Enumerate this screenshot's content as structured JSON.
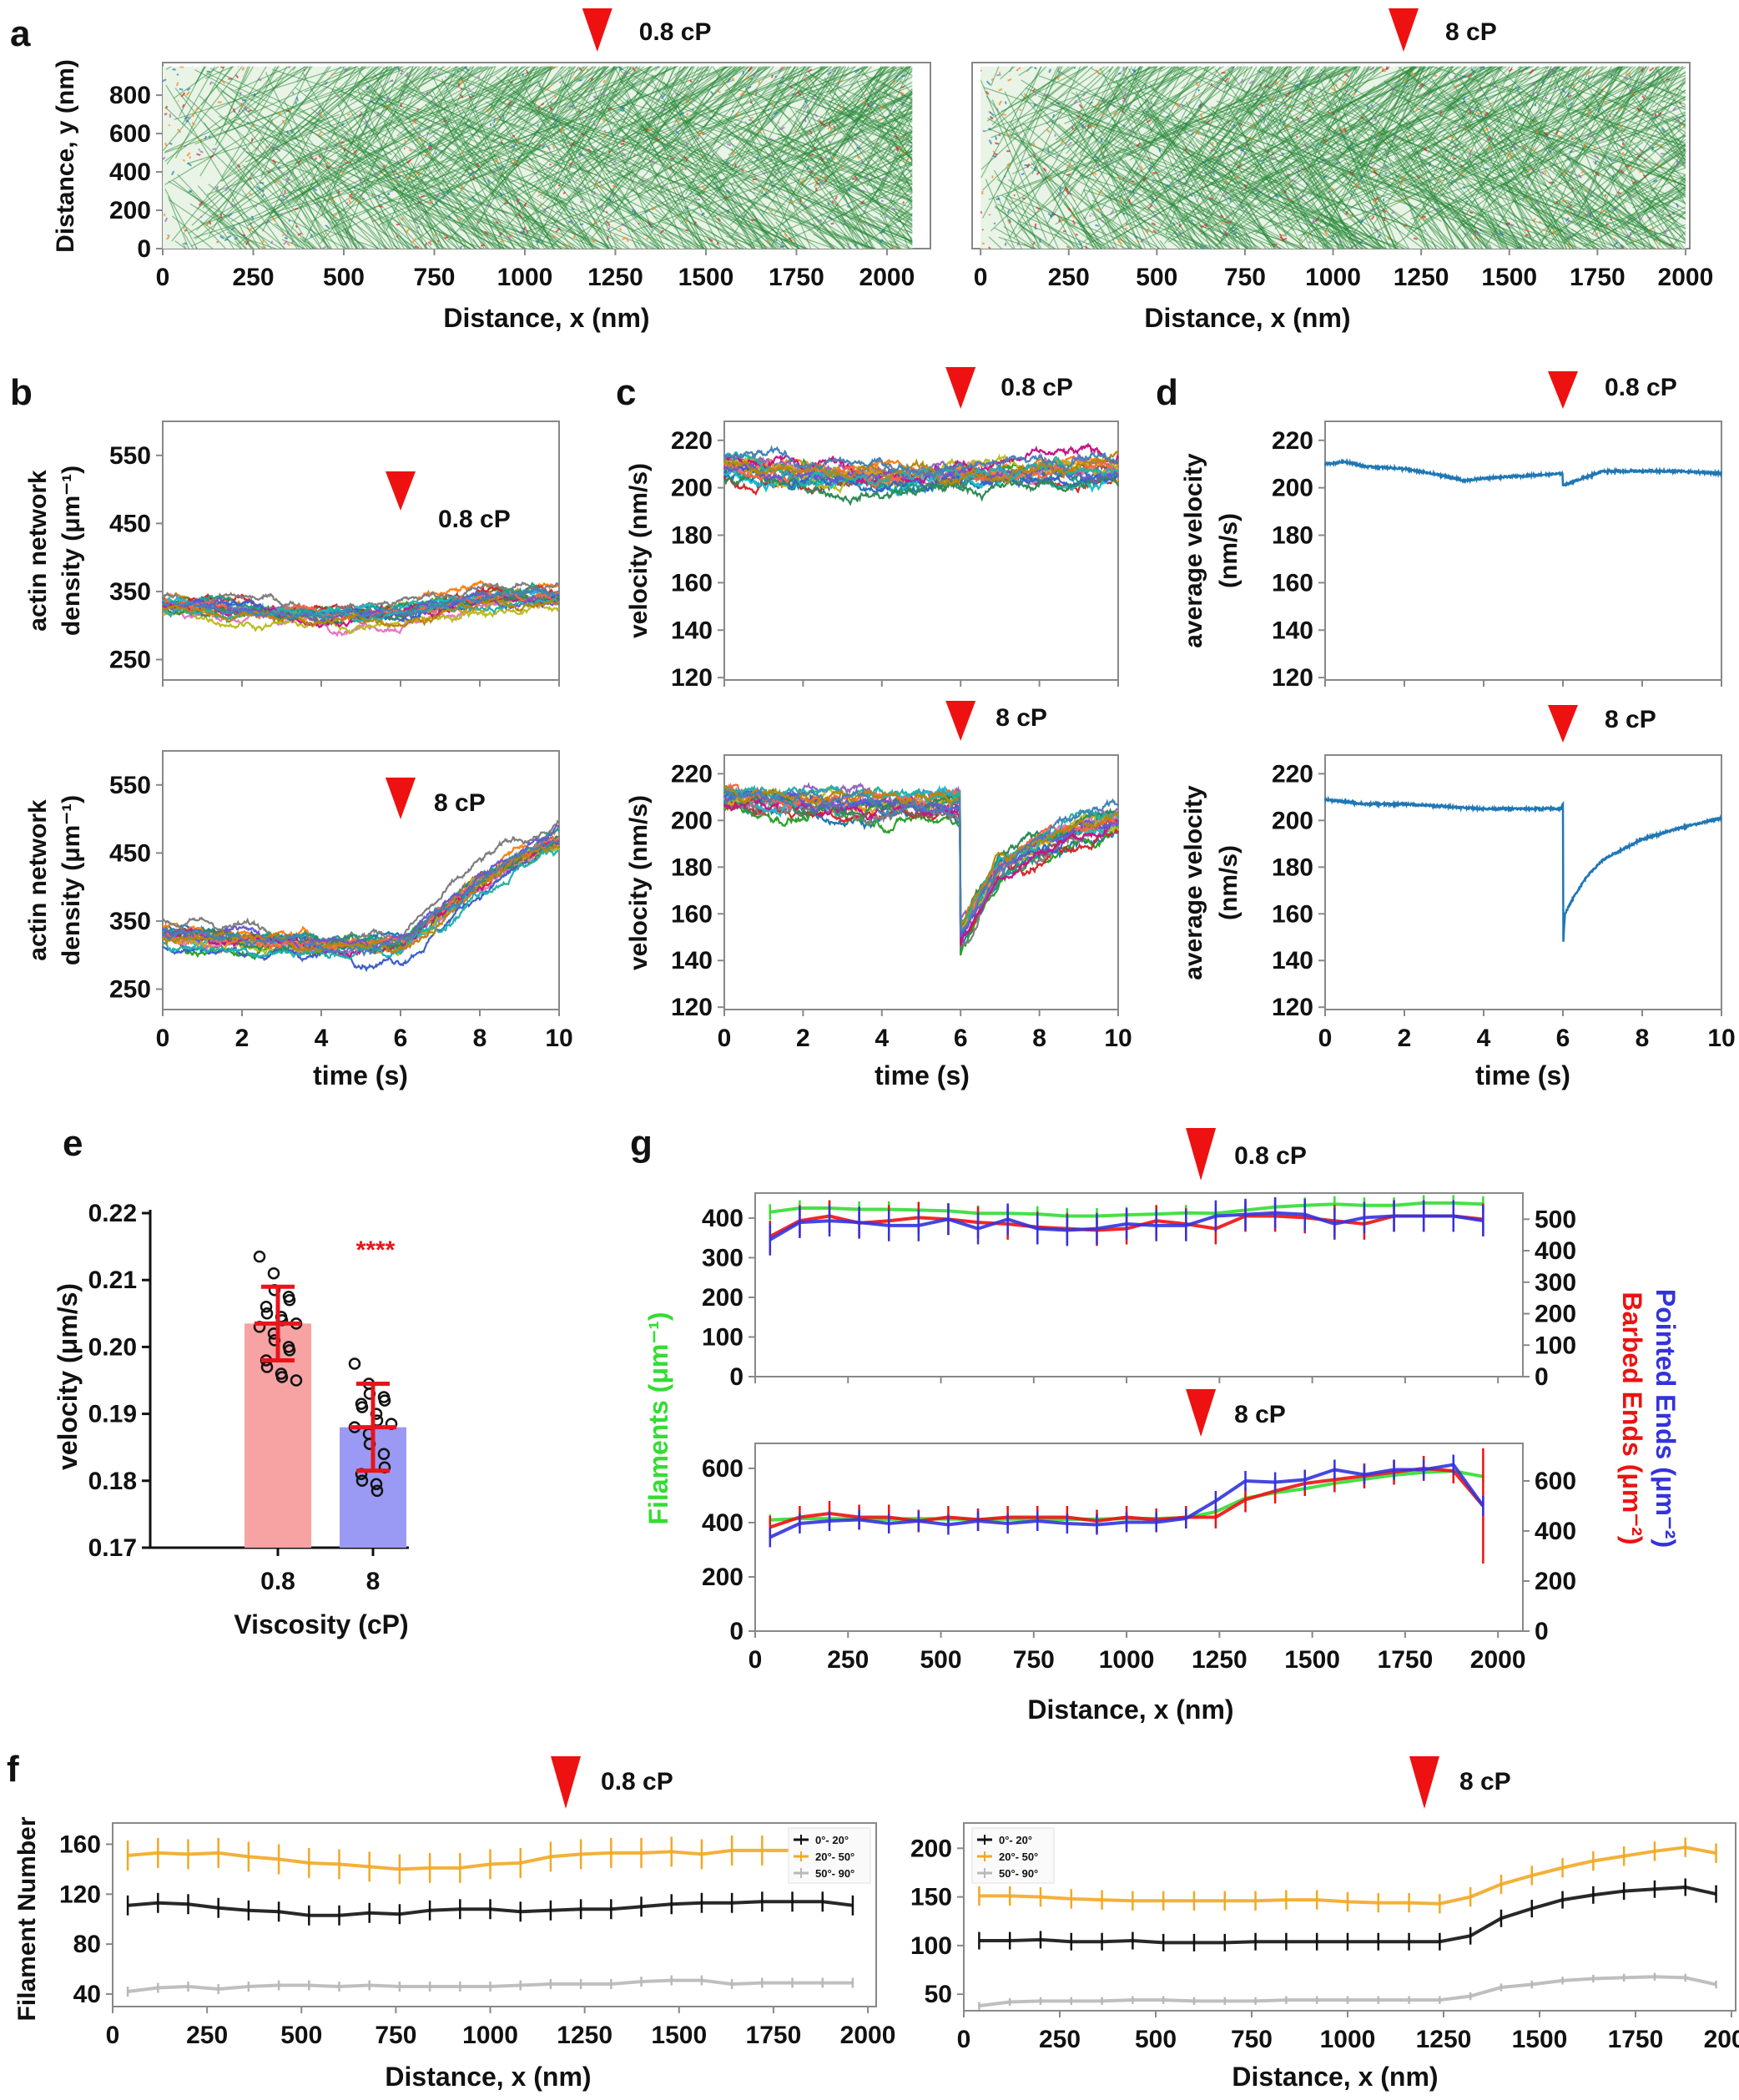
{
  "colors": {
    "marker": "#ee1111",
    "axis": "#888888",
    "network": "#2a8a3a",
    "bar_08": "#f7a3a3",
    "bar_8": "#9a9af4",
    "error": "#e8141b",
    "filaments": "#33dd33",
    "barbed": "#ee1111",
    "pointed": "#3333dd",
    "f_0_20": "#111111",
    "f_20_50": "#f2a825",
    "f_50_90": "#b8b8b8"
  },
  "chart_data": [
    {
      "id": "a1",
      "panel_label": "a",
      "type": "image",
      "content": "simulated actin network",
      "xlabel": "Distance, x (nm)",
      "ylabel": [
        "Distance, y (nm)"
      ],
      "xlim": [
        0,
        2120
      ],
      "ylim": [
        0,
        970
      ],
      "xticks": [
        0,
        250,
        500,
        750,
        1000,
        1250,
        1500,
        1750,
        2000
      ],
      "yticks": [
        0,
        200,
        400,
        600,
        800
      ],
      "network_x": [
        0,
        2070
      ],
      "network_y": [
        0,
        950
      ],
      "marker": {
        "x": 1200,
        "label": "0.8 cP"
      }
    },
    {
      "id": "a2",
      "panel_label": "",
      "type": "image",
      "content": "simulated actin network",
      "xlabel": "Distance, x (nm)",
      "ylabel": [],
      "xlim": [
        -24,
        2012
      ],
      "ylim": [
        0,
        970
      ],
      "xticks": [
        0,
        250,
        500,
        750,
        1000,
        1250,
        1500,
        1750,
        2000
      ],
      "yticks": [],
      "network_x": [
        0,
        2000
      ],
      "network_y": [
        0,
        950
      ],
      "marker": {
        "x": 1200,
        "label": "8 cP"
      }
    },
    {
      "id": "b1",
      "panel_label": "b",
      "type": "line",
      "xlabel": "",
      "ylabel": [
        "actin network",
        "density (μm⁻¹)"
      ],
      "xlim": [
        0,
        10
      ],
      "ylim": [
        220,
        600
      ],
      "xticks": [
        0,
        2,
        4,
        6,
        8,
        10
      ],
      "xtick_labels": false,
      "yticks": [
        250,
        350,
        450,
        550
      ],
      "marker": {
        "x": 6,
        "label": "0.8 cP"
      },
      "traces": 20,
      "mean": {
        "t": [
          0,
          2,
          4,
          6,
          8,
          10
        ],
        "y": [
          330,
          325,
          315,
          320,
          340,
          345
        ]
      }
    },
    {
      "id": "b2",
      "panel_label": "",
      "type": "line",
      "xlabel": "time (s)",
      "ylabel": [
        "actin network",
        "density (μm⁻¹)"
      ],
      "xlim": [
        0,
        10
      ],
      "ylim": [
        220,
        600
      ],
      "xticks": [
        0,
        2,
        4,
        6,
        8,
        10
      ],
      "yticks": [
        250,
        350,
        450,
        550
      ],
      "marker": {
        "x": 6,
        "label": "8 cP"
      },
      "traces": 20,
      "mean": {
        "t": [
          0,
          2,
          4,
          6,
          7,
          8,
          9,
          10
        ],
        "y": [
          330,
          322,
          315,
          315,
          360,
          410,
          445,
          470
        ]
      }
    },
    {
      "id": "c1",
      "panel_label": "c",
      "type": "line",
      "xlabel": "",
      "ylabel": [
        "velocity (nm/s)"
      ],
      "xlim": [
        0,
        10
      ],
      "ylim": [
        119,
        228
      ],
      "xticks": [
        0,
        2,
        4,
        6,
        8,
        10
      ],
      "xtick_labels": false,
      "yticks": [
        120,
        140,
        160,
        180,
        200,
        220
      ],
      "marker": {
        "x": 6,
        "label": "0.8 cP"
      },
      "traces": 20,
      "mean": {
        "t": [
          0,
          2,
          4,
          6,
          8,
          10
        ],
        "y": [
          208,
          205,
          203,
          205,
          206,
          207
        ]
      }
    },
    {
      "id": "c2",
      "panel_label": "",
      "type": "line",
      "xlabel": "time (s)",
      "ylabel": [
        "velocity (nm/s)"
      ],
      "xlim": [
        0,
        10
      ],
      "ylim": [
        119,
        228
      ],
      "xticks": [
        0,
        2,
        4,
        6,
        8,
        10
      ],
      "yticks": [
        120,
        140,
        160,
        180,
        200,
        220
      ],
      "marker": {
        "x": 6,
        "label": "8 cP"
      },
      "traces": 20,
      "mean": {
        "t": [
          0,
          2,
          4,
          5.99,
          6.0,
          7,
          8,
          9,
          10
        ],
        "y": [
          210,
          208,
          207,
          208,
          152,
          180,
          190,
          197,
          201
        ]
      }
    },
    {
      "id": "d1",
      "panel_label": "d",
      "type": "line",
      "xlabel": "",
      "ylabel": [
        "average velocity",
        "(nm/s)"
      ],
      "xlim": [
        0,
        10
      ],
      "ylim": [
        119,
        228
      ],
      "xticks": [
        0,
        2,
        4,
        6,
        8,
        10
      ],
      "xtick_labels": false,
      "yticks": [
        120,
        140,
        160,
        180,
        200,
        220
      ],
      "marker": {
        "x": 6,
        "label": "0.8 cP"
      },
      "color": "#1f77b4",
      "series": {
        "t": [
          0,
          0.5,
          1,
          2,
          3,
          3.5,
          4,
          5,
          5.99,
          6.0,
          6.5,
          7,
          8,
          9,
          10
        ],
        "y": [
          210,
          211,
          209,
          208,
          205,
          203,
          204,
          205,
          206,
          201,
          204,
          207,
          207,
          207,
          206
        ]
      }
    },
    {
      "id": "d2",
      "panel_label": "",
      "type": "line",
      "xlabel": "time (s)",
      "ylabel": [
        "average velocity",
        "(nm/s)"
      ],
      "xlim": [
        0,
        10
      ],
      "ylim": [
        119,
        228
      ],
      "xticks": [
        0,
        2,
        4,
        6,
        8,
        10
      ],
      "yticks": [
        120,
        140,
        160,
        180,
        200,
        220
      ],
      "marker": {
        "x": 6,
        "label": "8 cP"
      },
      "color": "#1f77b4",
      "series": {
        "t": [
          0,
          1,
          2,
          3,
          4,
          5,
          5.95,
          6.0,
          6.01,
          6.05,
          6.3,
          6.6,
          7,
          8,
          9,
          10
        ],
        "y": [
          209,
          207,
          207,
          206,
          205,
          205,
          205,
          207,
          148,
          160,
          168,
          176,
          183,
          192,
          197,
          201
        ]
      }
    },
    {
      "id": "e",
      "panel_label": "e",
      "type": "bar",
      "xlabel": "Viscosity (cP)",
      "ylabel": [
        "velocity (μm/s)"
      ],
      "categories": [
        "0.8",
        "8"
      ],
      "values": [
        0.2035,
        0.188
      ],
      "sd": [
        0.0055,
        0.0065
      ],
      "ylim": [
        0.17,
        0.2205
      ],
      "yticks": [
        0.17,
        0.18,
        0.19,
        0.2,
        0.21,
        0.22
      ],
      "significance": "****",
      "points": [
        [
          0.2135,
          0.211,
          0.2085,
          0.2075,
          0.207,
          0.206,
          0.205,
          0.2045,
          0.204,
          0.2035,
          0.203,
          0.202,
          0.201,
          0.2,
          0.1995,
          0.198,
          0.197,
          0.196,
          0.1955,
          0.195
        ],
        [
          0.1975,
          0.1945,
          0.193,
          0.1925,
          0.192,
          0.1915,
          0.191,
          0.19,
          0.189,
          0.1885,
          0.188,
          0.187,
          0.1855,
          0.184,
          0.182,
          0.181,
          0.18,
          0.1795,
          0.1785
        ]
      ]
    },
    {
      "id": "g1",
      "panel_label": "g",
      "type": "line",
      "xlabel": "",
      "ylabel": [
        "Filaments (μm⁻¹)"
      ],
      "ylabel_right": [
        "Barbed Ends (μm⁻²)",
        "Pointed Ends (μm⁻²)"
      ],
      "xlim": [
        0,
        2067
      ],
      "ylim": [
        0,
        463
      ],
      "ylim_right": [
        0,
        583
      ],
      "xticks": [
        0,
        250,
        500,
        750,
        1000,
        1250,
        1500,
        1750,
        2000
      ],
      "xtick_labels": false,
      "yticks": [
        0,
        100,
        200,
        300,
        400
      ],
      "yticks_right": [
        0,
        100,
        200,
        300,
        400,
        500
      ],
      "marker": {
        "x": 1200,
        "label": "0.8 cP"
      },
      "x": [
        40,
        120,
        200,
        280,
        360,
        440,
        520,
        600,
        680,
        760,
        840,
        920,
        1000,
        1080,
        1160,
        1240,
        1320,
        1400,
        1480,
        1560,
        1640,
        1720,
        1800,
        1880,
        1960
      ],
      "series": [
        {
          "key": "filaments",
          "axis": "left",
          "error": 20,
          "values": [
            415,
            425,
            425,
            422,
            422,
            420,
            418,
            412,
            412,
            410,
            405,
            405,
            408,
            410,
            413,
            412,
            420,
            428,
            432,
            435,
            432,
            432,
            438,
            438,
            435
          ]
        },
        {
          "key": "barbed",
          "axis": "right",
          "error": 50,
          "values": [
            445,
            495,
            510,
            488,
            495,
            505,
            500,
            490,
            485,
            475,
            470,
            465,
            470,
            495,
            485,
            470,
            510,
            510,
            505,
            495,
            485,
            510,
            510,
            510,
            500
          ]
        },
        {
          "key": "pointed",
          "axis": "right",
          "error": 50,
          "values": [
            435,
            490,
            495,
            490,
            480,
            480,
            500,
            470,
            500,
            470,
            465,
            470,
            485,
            480,
            480,
            510,
            515,
            520,
            515,
            485,
            505,
            510,
            510,
            510,
            495
          ]
        }
      ]
    },
    {
      "id": "g2",
      "panel_label": "",
      "type": "line",
      "xlabel": "Distance, x (nm)",
      "ylabel": [],
      "xlim": [
        0,
        2067
      ],
      "ylim": [
        0,
        692
      ],
      "ylim_right": [
        0,
        750
      ],
      "xticks": [
        0,
        250,
        500,
        750,
        1000,
        1250,
        1500,
        1750,
        2000
      ],
      "yticks": [
        0,
        200,
        400,
        600
      ],
      "yticks_right": [
        0,
        200,
        400,
        600
      ],
      "marker": {
        "x": 1200,
        "label": "8 cP"
      },
      "x": [
        40,
        120,
        200,
        280,
        360,
        440,
        520,
        600,
        680,
        760,
        840,
        920,
        1000,
        1080,
        1160,
        1240,
        1320,
        1400,
        1480,
        1560,
        1640,
        1720,
        1800,
        1880,
        1960
      ],
      "series": [
        {
          "key": "filaments",
          "axis": "left",
          "error": 20,
          "values": [
            410,
            415,
            415,
            413,
            412,
            415,
            413,
            412,
            413,
            413,
            412,
            413,
            415,
            415,
            418,
            440,
            490,
            510,
            525,
            545,
            560,
            575,
            585,
            590,
            570
          ]
        },
        {
          "key": "barbed",
          "axis": "right",
          "error": [
            45,
            45,
            50,
            50,
            50,
            45,
            45,
            45,
            45,
            45,
            45,
            45,
            45,
            45,
            45,
            45,
            50,
            50,
            50,
            50,
            50,
            50,
            50,
            50,
            230
          ],
          "values": [
            415,
            455,
            470,
            455,
            455,
            440,
            455,
            445,
            455,
            455,
            455,
            440,
            455,
            445,
            455,
            455,
            525,
            560,
            590,
            605,
            620,
            635,
            650,
            640,
            500
          ]
        },
        {
          "key": "pointed",
          "axis": "right",
          "error": 40,
          "values": [
            375,
            430,
            440,
            445,
            430,
            440,
            425,
            440,
            430,
            440,
            430,
            425,
            435,
            435,
            450,
            520,
            600,
            595,
            605,
            645,
            625,
            645,
            645,
            665,
            500
          ]
        }
      ]
    },
    {
      "id": "f1",
      "panel_label": "f",
      "type": "line",
      "xlabel": "Distance, x (nm)",
      "ylabel": [
        "Filament Number"
      ],
      "xlim": [
        0,
        2022
      ],
      "ylim": [
        30,
        177
      ],
      "xticks": [
        0,
        250,
        500,
        750,
        1000,
        1250,
        1500,
        1750,
        2000
      ],
      "yticks": [
        40,
        80,
        120,
        160
      ],
      "marker": {
        "x": 1200,
        "label": "0.8 cP"
      },
      "legend": "top-right",
      "x": [
        40,
        120,
        200,
        280,
        360,
        440,
        520,
        600,
        680,
        760,
        840,
        920,
        1000,
        1080,
        1160,
        1240,
        1320,
        1400,
        1480,
        1560,
        1640,
        1720,
        1800,
        1880,
        1960
      ],
      "series": [
        {
          "key": "f_0_20",
          "name": "0°- 20°",
          "error": 8,
          "values": [
            111,
            113,
            112,
            109,
            107,
            106,
            103,
            103,
            105,
            104,
            107,
            108,
            108,
            106,
            107,
            108,
            108,
            110,
            112,
            113,
            113,
            114,
            114,
            114,
            111
          ]
        },
        {
          "key": "f_20_50",
          "name": "20°- 50°",
          "error": 12,
          "values": [
            151,
            153,
            152,
            153,
            150,
            148,
            145,
            144,
            142,
            140,
            141,
            141,
            144,
            145,
            150,
            152,
            153,
            153,
            154,
            152,
            155,
            155,
            155,
            155,
            155
          ]
        },
        {
          "key": "f_50_90",
          "name": "50°- 90°",
          "error": 4,
          "values": [
            42,
            45,
            46,
            44,
            46,
            47,
            47,
            46,
            47,
            46,
            46,
            46,
            46,
            47,
            48,
            48,
            48,
            50,
            51,
            51,
            48,
            49,
            49,
            49,
            49
          ]
        }
      ]
    },
    {
      "id": "f2",
      "panel_label": "",
      "type": "line",
      "xlabel": "Distance, x (nm)",
      "ylabel": [],
      "xlim": [
        0,
        2011
      ],
      "ylim": [
        33,
        226
      ],
      "xticks": [
        0,
        250,
        500,
        750,
        1000,
        1250,
        1500,
        1750,
        2000
      ],
      "yticks": [
        50,
        100,
        150,
        200
      ],
      "marker": {
        "x": 1200,
        "label": "8 cP"
      },
      "legend": "top-left",
      "x": [
        40,
        120,
        200,
        280,
        360,
        440,
        520,
        600,
        680,
        760,
        840,
        920,
        1000,
        1080,
        1160,
        1240,
        1320,
        1400,
        1480,
        1560,
        1640,
        1720,
        1800,
        1880,
        1960
      ],
      "series": [
        {
          "key": "f_0_20",
          "name": "0°- 20°",
          "error": 9,
          "values": [
            105,
            105,
            106,
            104,
            104,
            105,
            103,
            103,
            103,
            104,
            104,
            104,
            104,
            104,
            104,
            104,
            110,
            128,
            138,
            147,
            152,
            156,
            158,
            160,
            153
          ]
        },
        {
          "key": "f_20_50",
          "name": "20°- 50°",
          "error": 10,
          "values": [
            151,
            151,
            150,
            148,
            147,
            146,
            146,
            146,
            146,
            146,
            147,
            147,
            145,
            144,
            144,
            143,
            150,
            163,
            172,
            180,
            187,
            192,
            197,
            201,
            195
          ]
        },
        {
          "key": "f_50_90",
          "name": "50°- 90°",
          "error": 4,
          "values": [
            38,
            42,
            43,
            43,
            43,
            44,
            44,
            43,
            43,
            43,
            44,
            44,
            44,
            44,
            44,
            44,
            48,
            57,
            60,
            64,
            66,
            67,
            68,
            67,
            60
          ]
        }
      ]
    }
  ]
}
